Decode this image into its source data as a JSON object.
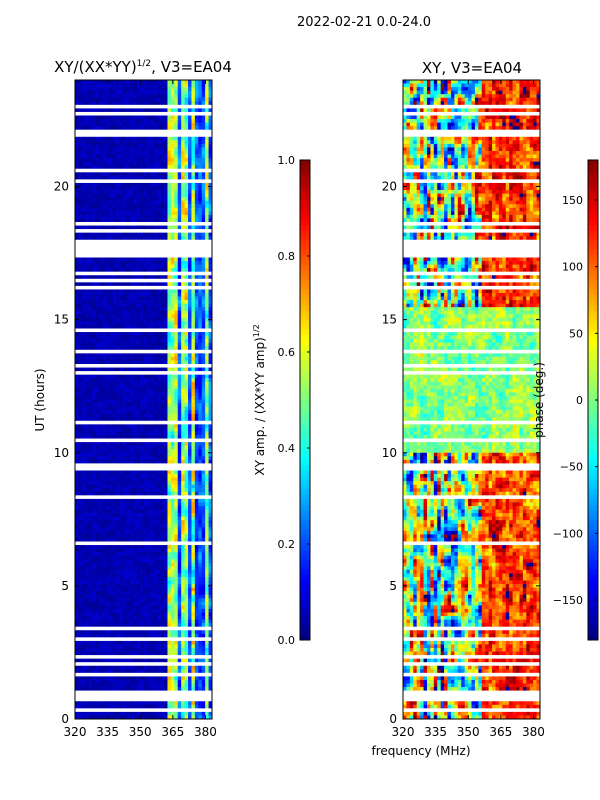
{
  "figure": {
    "suptitle": "2022-02-21 0.0-24.0"
  },
  "chart_data": [
    {
      "type": "heatmap",
      "title": "XY/(XX*YY)^(1/2), V3=EA04",
      "title_main": "XY/(XX*YY)",
      "title_exp": "1/2",
      "title_tail": ", V3=EA04",
      "xlabel": "",
      "ylabel": "UT (hours)",
      "xlim": [
        320,
        383
      ],
      "ylim": [
        0,
        24
      ],
      "xticks": [
        320,
        335,
        350,
        365,
        380
      ],
      "yticks": [
        0,
        5,
        10,
        15,
        20
      ],
      "colorbar": {
        "label": "XY amp. / (XX*YY amp)^(1/2)",
        "label_main": "XY amp. / (XX*YY amp)",
        "label_exp": "1/2",
        "range": [
          0.0,
          1.0
        ],
        "ticks": [
          "0.0",
          "0.2",
          "0.4",
          "0.6",
          "0.8",
          "1.0"
        ],
        "tick_values": [
          0.0,
          0.2,
          0.4,
          0.6,
          0.8,
          1.0
        ],
        "colormap": "jet"
      },
      "flagged_ut_ranges": [
        [
          0.3,
          0.38
        ],
        [
          0.7,
          0.78
        ],
        [
          0.85,
          1.1
        ],
        [
          1.6,
          1.68
        ],
        [
          2.0,
          2.12
        ],
        [
          2.3,
          2.36
        ],
        [
          3.0,
          3.06
        ],
        [
          3.4,
          3.45
        ],
        [
          3.55,
          3.6
        ],
        [
          3.75,
          3.8
        ],
        [
          5.6,
          5.66
        ],
        [
          5.85,
          5.9
        ],
        [
          6.6,
          6.66
        ],
        [
          6.9,
          6.96
        ],
        [
          7.6,
          7.66
        ],
        [
          7.95,
          8.0
        ],
        [
          8.3,
          8.36
        ],
        [
          8.9,
          8.95
        ],
        [
          9.3,
          9.6
        ],
        [
          10.25,
          10.3
        ],
        [
          10.45,
          10.5
        ],
        [
          11.1,
          11.16
        ],
        [
          11.4,
          11.46
        ],
        [
          12.1,
          12.16
        ],
        [
          12.95,
          13.0
        ],
        [
          13.25,
          13.3
        ],
        [
          13.8,
          13.86
        ],
        [
          14.1,
          14.16
        ],
        [
          14.35,
          14.4
        ],
        [
          14.55,
          14.6
        ],
        [
          14.75,
          14.8
        ],
        [
          15.6,
          15.66
        ],
        [
          15.95,
          16.0
        ],
        [
          16.2,
          16.26
        ],
        [
          16.45,
          16.5
        ],
        [
          16.7,
          16.76
        ],
        [
          17.4,
          17.6
        ],
        [
          17.5,
          18.0
        ],
        [
          18.3,
          18.36
        ],
        [
          18.6,
          18.66
        ],
        [
          18.9,
          18.96
        ],
        [
          19.2,
          19.26
        ],
        [
          19.6,
          19.66
        ],
        [
          20.2,
          20.26
        ],
        [
          20.6,
          20.66
        ],
        [
          21.2,
          21.26
        ],
        [
          21.6,
          21.66
        ],
        [
          21.9,
          22.1
        ],
        [
          22.4,
          22.46
        ],
        [
          22.7,
          22.76
        ],
        [
          23.0,
          23.06
        ],
        [
          23.3,
          23.36
        ],
        [
          23.7,
          23.76
        ]
      ],
      "rfi_bands_mhz": [
        [
          363,
          365
        ],
        [
          366,
          367.5
        ],
        [
          368.5,
          370
        ],
        [
          371,
          372
        ],
        [
          373,
          374.5
        ],
        [
          376,
          377
        ],
        [
          378,
          379
        ],
        [
          380,
          381
        ]
      ]
    },
    {
      "type": "heatmap",
      "title": "XY, V3=EA04",
      "xlabel": "frequency (MHz)",
      "ylabel": "",
      "xlim": [
        320,
        383
      ],
      "ylim": [
        0,
        24
      ],
      "xticks": [
        320,
        335,
        350,
        365,
        380
      ],
      "yticks": [
        0,
        5,
        10,
        15,
        20
      ],
      "colorbar": {
        "label": "phase (deg.)",
        "range": [
          -180,
          180
        ],
        "ticks": [
          "−150",
          "−100",
          "−50",
          "0",
          "50",
          "100",
          "150"
        ],
        "tick_values": [
          -150,
          -100,
          -50,
          0,
          50,
          100,
          150
        ],
        "colormap": "jet"
      },
      "flagged_ut_ranges": [
        [
          0.3,
          0.38
        ],
        [
          0.7,
          0.78
        ],
        [
          0.85,
          1.1
        ],
        [
          1.6,
          1.68
        ],
        [
          2.0,
          2.12
        ],
        [
          2.3,
          2.36
        ],
        [
          3.0,
          3.06
        ],
        [
          3.4,
          3.45
        ],
        [
          3.55,
          3.6
        ],
        [
          3.75,
          3.8
        ],
        [
          5.6,
          5.66
        ],
        [
          5.85,
          5.9
        ],
        [
          6.6,
          6.66
        ],
        [
          6.9,
          6.96
        ],
        [
          7.6,
          7.66
        ],
        [
          7.95,
          8.0
        ],
        [
          8.3,
          8.36
        ],
        [
          8.9,
          8.95
        ],
        [
          9.3,
          9.6
        ],
        [
          10.25,
          10.3
        ],
        [
          10.45,
          10.5
        ],
        [
          11.1,
          11.16
        ],
        [
          11.4,
          11.46
        ],
        [
          12.1,
          12.16
        ],
        [
          12.95,
          13.0
        ],
        [
          13.25,
          13.3
        ],
        [
          13.8,
          13.86
        ],
        [
          14.1,
          14.16
        ],
        [
          14.35,
          14.4
        ],
        [
          14.55,
          14.6
        ],
        [
          14.75,
          14.8
        ],
        [
          15.6,
          15.66
        ],
        [
          15.95,
          16.0
        ],
        [
          16.2,
          16.26
        ],
        [
          16.45,
          16.5
        ],
        [
          16.7,
          16.76
        ],
        [
          17.4,
          17.6
        ],
        [
          17.5,
          18.0
        ],
        [
          18.3,
          18.36
        ],
        [
          18.6,
          18.66
        ],
        [
          18.9,
          18.96
        ],
        [
          19.2,
          19.26
        ],
        [
          19.6,
          19.66
        ],
        [
          20.2,
          20.26
        ],
        [
          20.6,
          20.66
        ],
        [
          21.2,
          21.26
        ],
        [
          21.6,
          21.66
        ],
        [
          21.9,
          22.1
        ],
        [
          22.4,
          22.46
        ],
        [
          22.7,
          22.76
        ],
        [
          23.0,
          23.06
        ],
        [
          23.3,
          23.36
        ],
        [
          23.7,
          23.76
        ]
      ]
    }
  ]
}
